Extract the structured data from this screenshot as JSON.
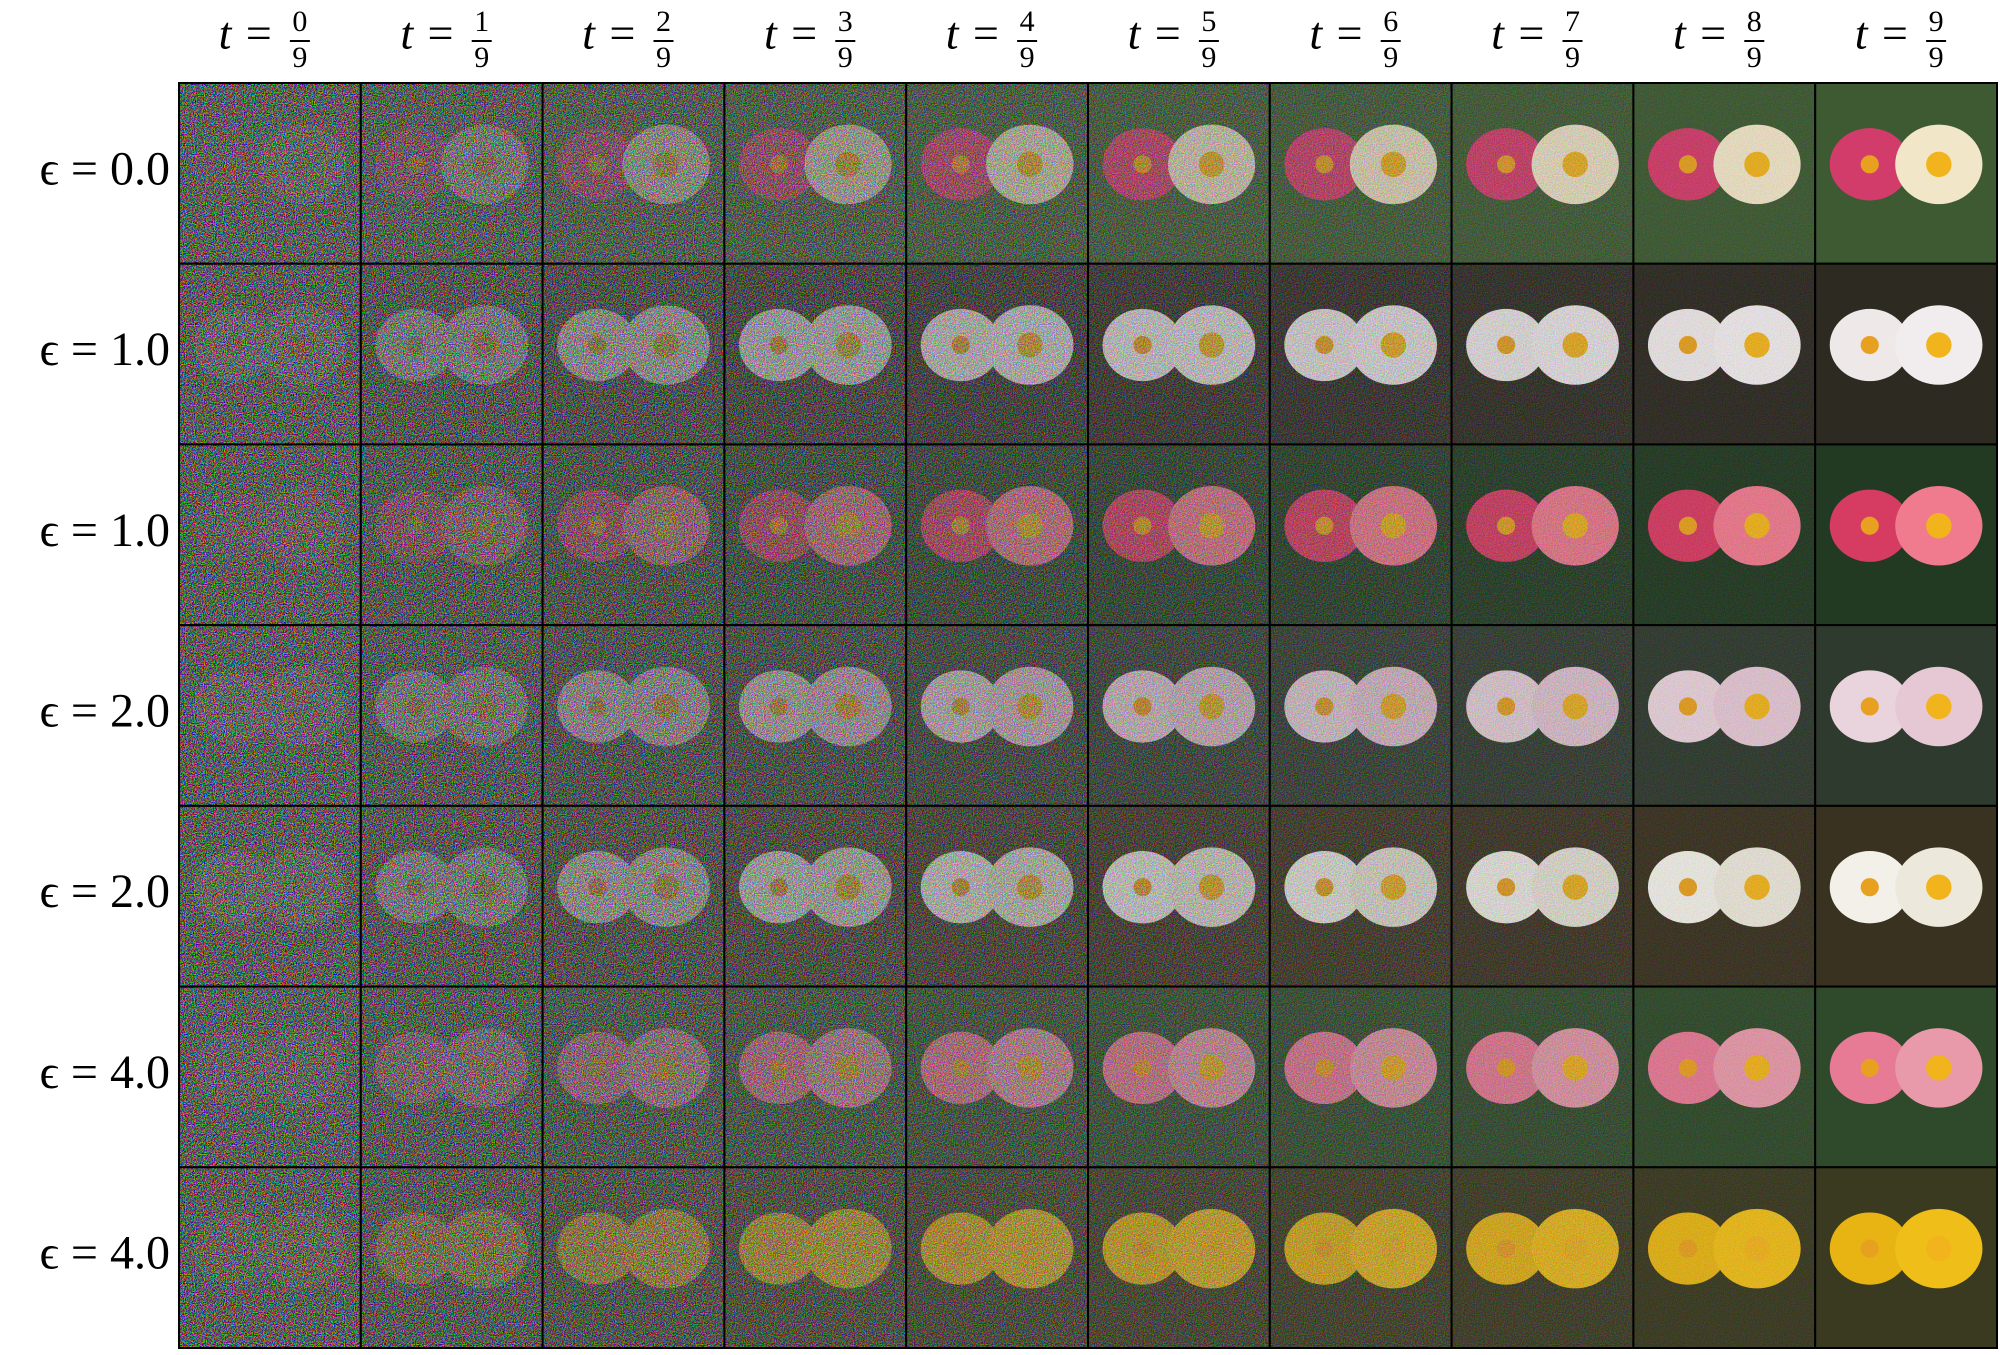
{
  "figure": {
    "columns": [
      {
        "lhs": "t =",
        "num": "0",
        "den": "9"
      },
      {
        "lhs": "t =",
        "num": "1",
        "den": "9"
      },
      {
        "lhs": "t =",
        "num": "2",
        "den": "9"
      },
      {
        "lhs": "t =",
        "num": "3",
        "den": "9"
      },
      {
        "lhs": "t =",
        "num": "4",
        "den": "9"
      },
      {
        "lhs": "t =",
        "num": "5",
        "den": "9"
      },
      {
        "lhs": "t =",
        "num": "6",
        "den": "9"
      },
      {
        "lhs": "t =",
        "num": "7",
        "den": "9"
      },
      {
        "lhs": "t =",
        "num": "8",
        "den": "9"
      },
      {
        "lhs": "t =",
        "num": "9",
        "den": "9"
      }
    ],
    "rows": [
      "ϵ = 0.0",
      "ϵ = 1.0",
      "ϵ = 1.0",
      "ϵ = 2.0",
      "ϵ = 2.0",
      "ϵ = 4.0",
      "ϵ = 4.0"
    ]
  }
}
